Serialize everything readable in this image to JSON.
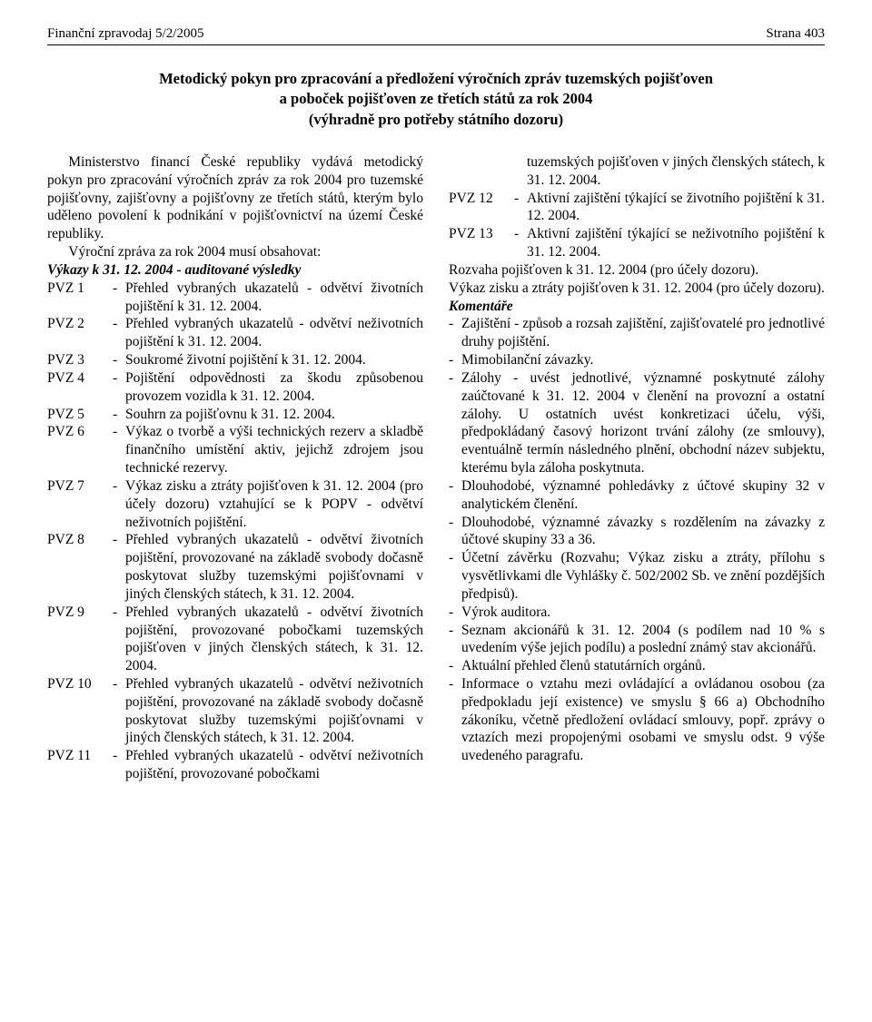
{
  "header": {
    "left": "Finanční zpravodaj 5/2/2005",
    "right": "Strana 403"
  },
  "title": {
    "line1": "Metodický pokyn pro zpracování a předložení výročních zpráv tuzemských pojišťoven",
    "line2": "a poboček pojišťoven ze třetích států za rok 2004",
    "line3": "(výhradně pro potřeby státního dozoru)"
  },
  "intro": {
    "p1": "Ministerstvo financí České republiky vydává metodický pokyn pro zpracování výročních zpráv za rok 2004 pro tuzemské pojišťovny, zajišťovny a pojišťovny ze třetích států, kterým bylo uděleno povolení k podnikání v pojišťovnictví na území České republiky.",
    "p2": "Výroční zpráva za rok 2004 musí obsahovat:",
    "p3": "Výkazy k 31. 12. 2004 - auditované výsledky"
  },
  "pvzLeft": [
    {
      "label": "PVZ 1",
      "text": "Přehled vybraných ukazatelů - odvětví životních pojištění k 31. 12. 2004."
    },
    {
      "label": "PVZ 2",
      "text": "Přehled vybraných ukazatelů - odvětví neživotních pojištění k 31. 12. 2004."
    },
    {
      "label": "PVZ 3",
      "text": "Soukromé životní pojištění k 31. 12. 2004."
    },
    {
      "label": "PVZ 4",
      "text": "Pojištění odpovědnosti za škodu způsobenou provozem vozidla k 31. 12. 2004."
    },
    {
      "label": "PVZ 5",
      "text": "Souhrn za pojišťovnu k 31. 12. 2004."
    },
    {
      "label": "PVZ 6",
      "text": "Výkaz o tvorbě a výši technických rezerv a skladbě finančního umístění aktiv, jejichž zdrojem jsou technické rezervy."
    },
    {
      "label": "PVZ 7",
      "text": "Výkaz zisku a ztráty pojišťoven k 31. 12. 2004 (pro účely dozoru) vztahující se k POPV - odvětví neživotních pojištění."
    },
    {
      "label": "PVZ 8",
      "text": "Přehled vybraných ukazatelů - odvětví životních pojištění, provozované na základě svobody dočasně poskytovat služby tuzemskými pojišťovnami v jiných členských státech, k 31. 12. 2004."
    },
    {
      "label": "PVZ 9",
      "text": "Přehled vybraných ukazatelů - odvětví životních pojištění, provozované pobočkami tuzemských pojišťoven v jiných členských státech, k 31. 12. 2004."
    },
    {
      "label": "PVZ 10",
      "text": "Přehled vybraných ukazatelů - odvětví neživotních pojištění, provozované na základě svobody dočasně poskytovat služby tuzemskými pojišťovnami v jiných členských státech, k 31. 12. 2004."
    },
    {
      "label": "PVZ 11",
      "text": "Přehled vybraných ukazatelů - odvětví neživotních pojištění, provozované pobočkami"
    }
  ],
  "pvzRightContinuation": "tuzemských pojišťoven v jiných členských státech, k 31. 12. 2004.",
  "pvzRight": [
    {
      "label": "PVZ 12",
      "text": "Aktivní zajištění týkající se životního pojištění k 31. 12. 2004."
    },
    {
      "label": "PVZ 13",
      "text": "Aktivní zajištění týkající se neživotního pojištění k 31. 12. 2004."
    }
  ],
  "afterPvz": {
    "p1": "Rozvaha pojišťoven k 31. 12. 2004 (pro účely dozoru).",
    "p2": "Výkaz zisku a ztráty pojišťoven k 31. 12. 2004 (pro účely dozoru)."
  },
  "commentsHeading": "Komentáře",
  "comments": [
    "Zajištění - způsob a rozsah zajištění, zajišťovatelé pro jednotlivé druhy pojištění.",
    "Mimobilanční závazky.",
    "Zálohy - uvést jednotlivé, významné poskytnuté zálohy zaúčtované k 31. 12. 2004 v členění na provozní a ostatní zálohy. U ostatních uvést konkretizaci účelu, výši, předpokládaný časový horizont trvání zálohy (ze smlouvy), eventuálně termín následného plnění, obchodní název subjektu, kterému byla záloha poskytnuta.",
    "Dlouhodobé, významné pohledávky z účtové skupiny 32 v analytickém členění.",
    "Dlouhodobé, významné závazky s rozdělením na závazky z účtové skupiny 33 a 36.",
    "Účetní závěrku (Rozvahu; Výkaz zisku a ztráty, přílohu s vysvětlivkami dle Vyhlášky č. 502/2002 Sb. ve znění pozdějších předpisů).",
    "Výrok auditora.",
    "Seznam akcionářů k 31. 12. 2004 (s podílem nad 10 % s uvedením výše jejich podílu) a poslední známý stav akcionářů.",
    "Aktuální přehled členů statutárních orgánů.",
    "Informace o vztahu mezi ovládající a ovládanou osobou (za předpokladu její existence) ve smyslu § 66 a) Obchodního zákoníku, včetně předložení ovládací smlouvy, popř. zprávy o vztazích mezi propojenými osobami ve smyslu odst. 9 výše uvedeného paragrafu."
  ]
}
